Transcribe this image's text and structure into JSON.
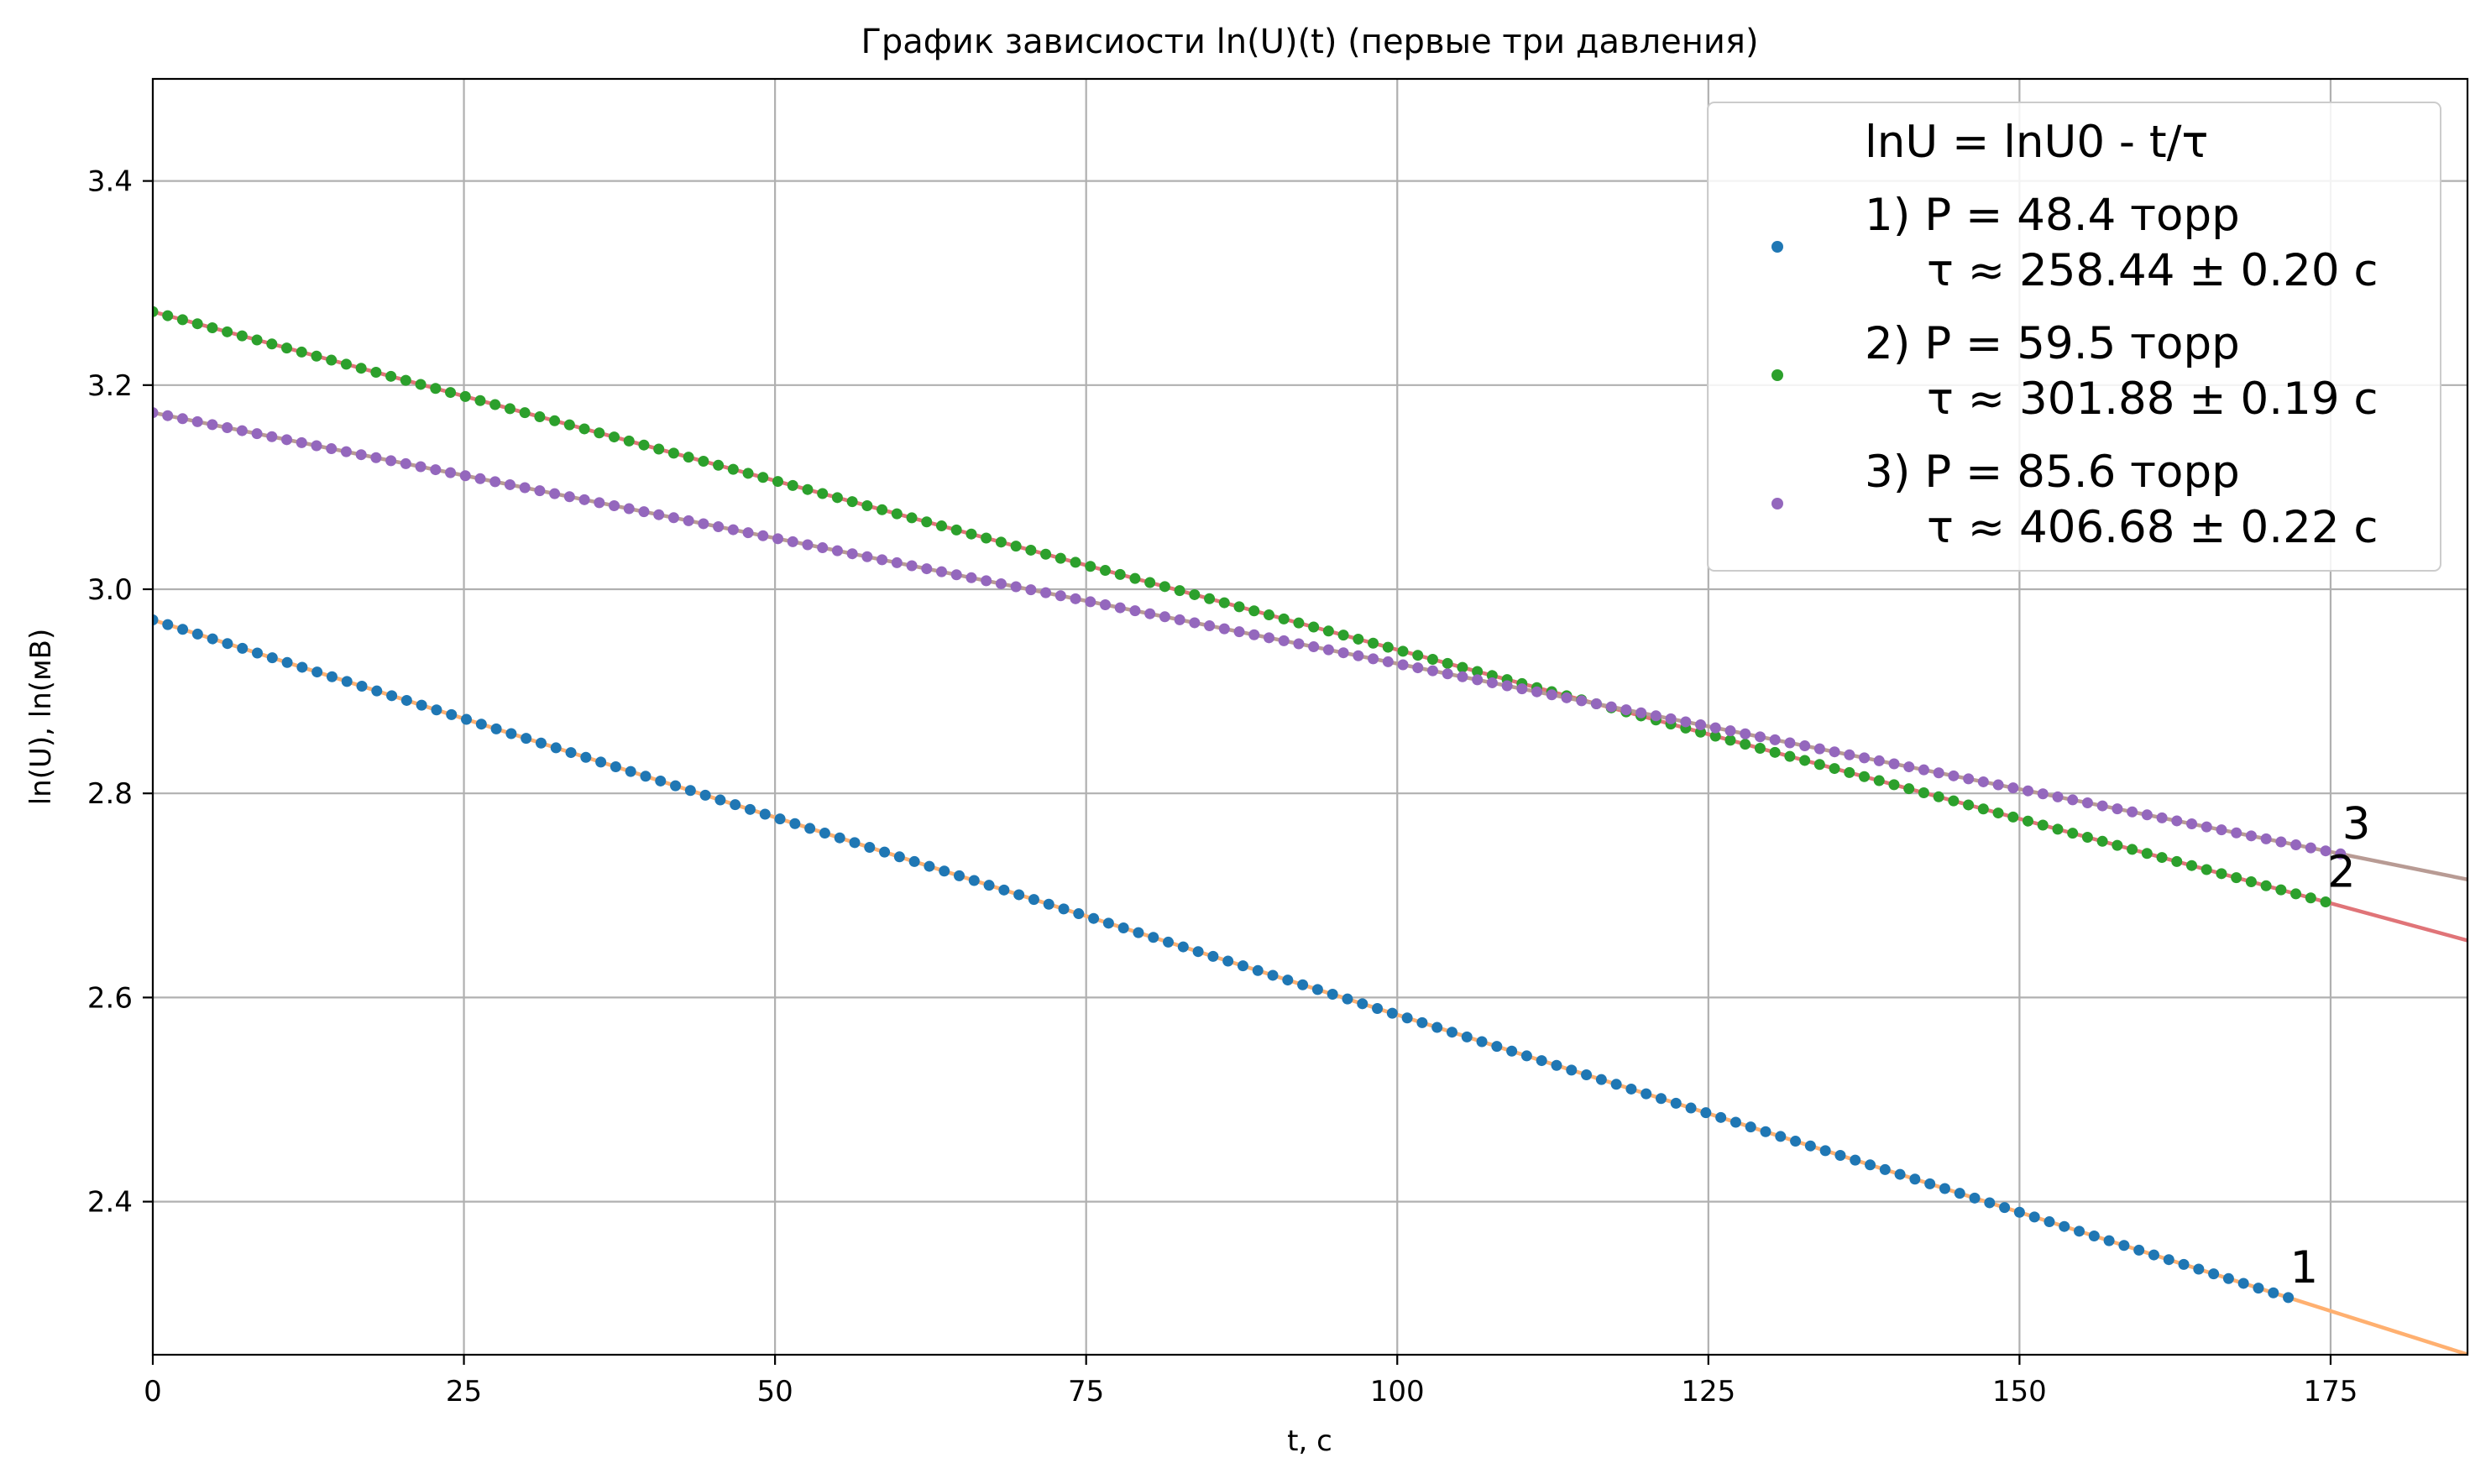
{
  "chart_data": {
    "type": "scatter",
    "title": "График зависиости ln(U)(t) (первые три давления)",
    "xlabel": "t, c",
    "ylabel": "ln(U), ln(мВ)",
    "xlim": [
      0,
      186
    ],
    "ylim": [
      2.25,
      3.5
    ],
    "xticks": [
      0,
      25,
      50,
      75,
      100,
      125,
      150,
      175
    ],
    "yticks": [
      2.4,
      2.6,
      2.8,
      3.0,
      3.2,
      3.4
    ],
    "grid": true,
    "legend": {
      "placement": "top-right",
      "title": "lnU = lnU0 - t/τ"
    },
    "series": [
      {
        "label_line1": "1) P = 48.4 торр",
        "label_line2": "τ ≈ 258.44 ± 0.20 c",
        "curve_label": "1",
        "lnU0": 2.97,
        "tau": 258.44,
        "t_end": 171.6,
        "point_color": "#1f77b4",
        "fit_color": "#ffb070"
      },
      {
        "label_line1": "2) P = 59.5 торр",
        "label_line2": "τ ≈ 301.88 ± 0.19 c",
        "curve_label": "2",
        "lnU0": 3.272,
        "tau": 301.88,
        "t_end": 174.6,
        "point_color": "#2ca02c",
        "fit_color": "#e07478"
      },
      {
        "label_line1": "3) P = 85.6 торр",
        "label_line2": "τ ≈ 406.68 ± 0.22 c",
        "curve_label": "3",
        "lnU0": 3.173,
        "tau": 406.68,
        "t_end": 175.8,
        "point_color": "#9467bd",
        "fit_color": "#b89b94"
      }
    ]
  }
}
